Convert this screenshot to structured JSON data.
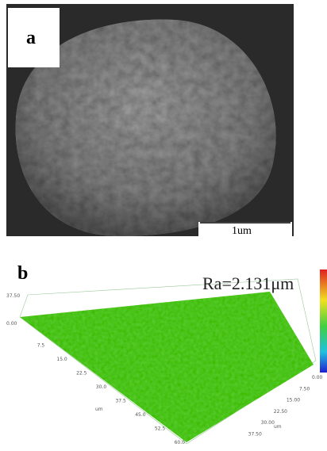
{
  "panel_a": {
    "label": "a",
    "scale_bar": "1um"
  },
  "panel_b": {
    "label": "b",
    "annotation": "Ra=2.131μm",
    "z_axis_ticks": [
      "37.50",
      "0.00"
    ],
    "left_axis_ticks": [
      "7.5",
      "15.0",
      "22.5",
      "30.0",
      "37.5",
      "45.0",
      "52.5",
      "60.0"
    ],
    "left_axis_unit": "um",
    "right_axis_ticks": [
      "0.00",
      "7.50",
      "15.00",
      "22.50",
      "30.00",
      "37.50"
    ],
    "right_axis_unit": "um"
  }
}
